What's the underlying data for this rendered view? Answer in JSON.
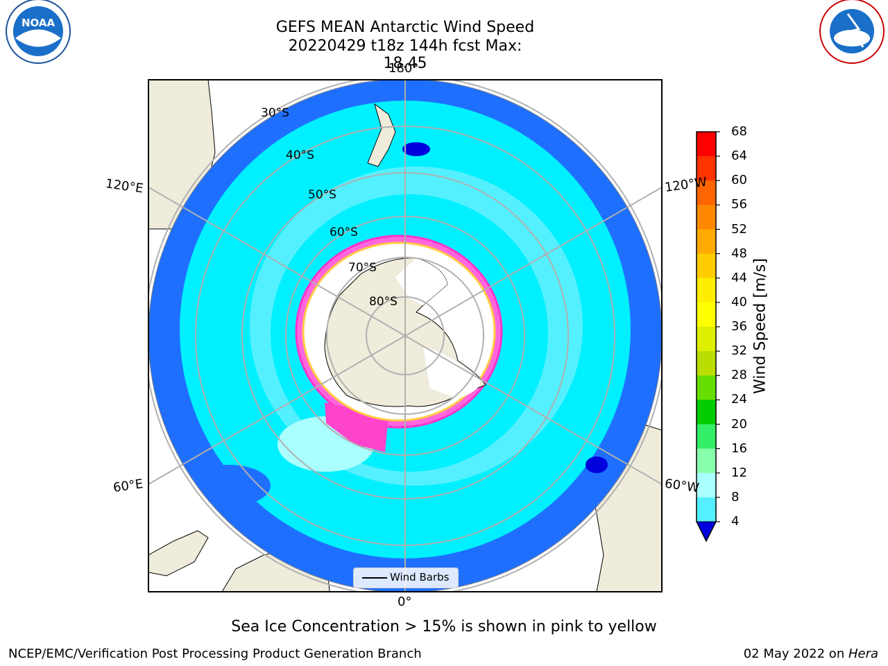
{
  "title": {
    "line1": "GEFS MEAN Antarctic Wind Speed",
    "line2": "20220429 t18z 144h fcst   Max: 18.45"
  },
  "map": {
    "lon_labels": {
      "top": "180°",
      "bottom": "0°",
      "upper_left": "120°E",
      "lower_left": "60°E",
      "upper_right": "120°W",
      "lower_right": "60°W"
    },
    "lat_labels": [
      "30°S",
      "40°S",
      "50°S",
      "60°S",
      "70°S",
      "80°S"
    ],
    "legend_label": "Wind Barbs"
  },
  "colorbar": {
    "title": "Wind Speed [m/s]",
    "ticks": [
      "68",
      "64",
      "60",
      "56",
      "52",
      "48",
      "44",
      "40",
      "36",
      "32",
      "28",
      "24",
      "20",
      "16",
      "12",
      "8",
      "4"
    ],
    "colors": [
      "#ff0000",
      "#ff3300",
      "#ff6600",
      "#ff8800",
      "#ffaa00",
      "#ffcc00",
      "#ffee00",
      "#ffff00",
      "#ddee00",
      "#bbdd00",
      "#66dd00",
      "#00cc00",
      "#33ee66",
      "#88ffaa",
      "#aaffff",
      "#55f0ff",
      "#00f0ff",
      "#0088ff",
      "#0000dd"
    ]
  },
  "logos": {
    "left": "NOAA",
    "right": "NATIONAL WEATHER SERVICE"
  },
  "caption": "Sea Ice Concentration > 15% is shown in pink to yellow",
  "footer": {
    "left": "NCEP/EMC/Verification Post Processing Product Generation Branch",
    "date": "02 May 2022 on ",
    "host": "Hera"
  }
}
